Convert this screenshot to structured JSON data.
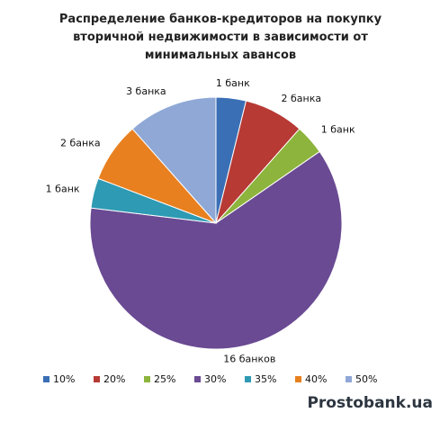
{
  "chart_data": {
    "type": "pie",
    "title": "Распределение банков-кредиторов  на покупку вторичной недвижимости в зависимости от минимальных авансов",
    "categories": [
      "10%",
      "20%",
      "25%",
      "30%",
      "35%",
      "40%",
      "50%"
    ],
    "values": [
      1,
      2,
      1,
      16,
      1,
      2,
      3
    ],
    "value_labels": [
      "1  банк",
      "2  банка",
      "1  банк",
      "16  банков",
      "1 банк",
      "2 банка",
      "3  банка"
    ],
    "colors": [
      "#3a6fb5",
      "#b73a35",
      "#8db43c",
      "#6a4a93",
      "#2e9ab3",
      "#e8801f",
      "#8fa8d6"
    ],
    "legend": "bottom",
    "watermark": "Prostobank.ua"
  }
}
